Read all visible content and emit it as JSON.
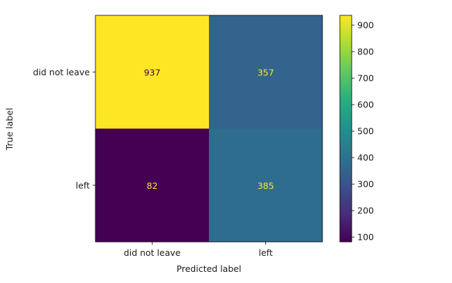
{
  "chart_data": {
    "type": "heatmap",
    "title": "",
    "xlabel": "Predicted label",
    "ylabel": "True label",
    "x_categories": [
      "did not leave",
      "left"
    ],
    "y_categories": [
      "did not leave",
      "left"
    ],
    "values": [
      [
        937,
        357
      ],
      [
        82,
        385
      ]
    ],
    "colormap": "viridis",
    "colorbar": {
      "range": [
        82,
        937
      ],
      "ticks": [
        100,
        200,
        300,
        400,
        500,
        600,
        700,
        800,
        900
      ]
    },
    "text_colors": {
      "on_dark": "#fde725",
      "on_light": "#440154"
    },
    "grid": false
  }
}
